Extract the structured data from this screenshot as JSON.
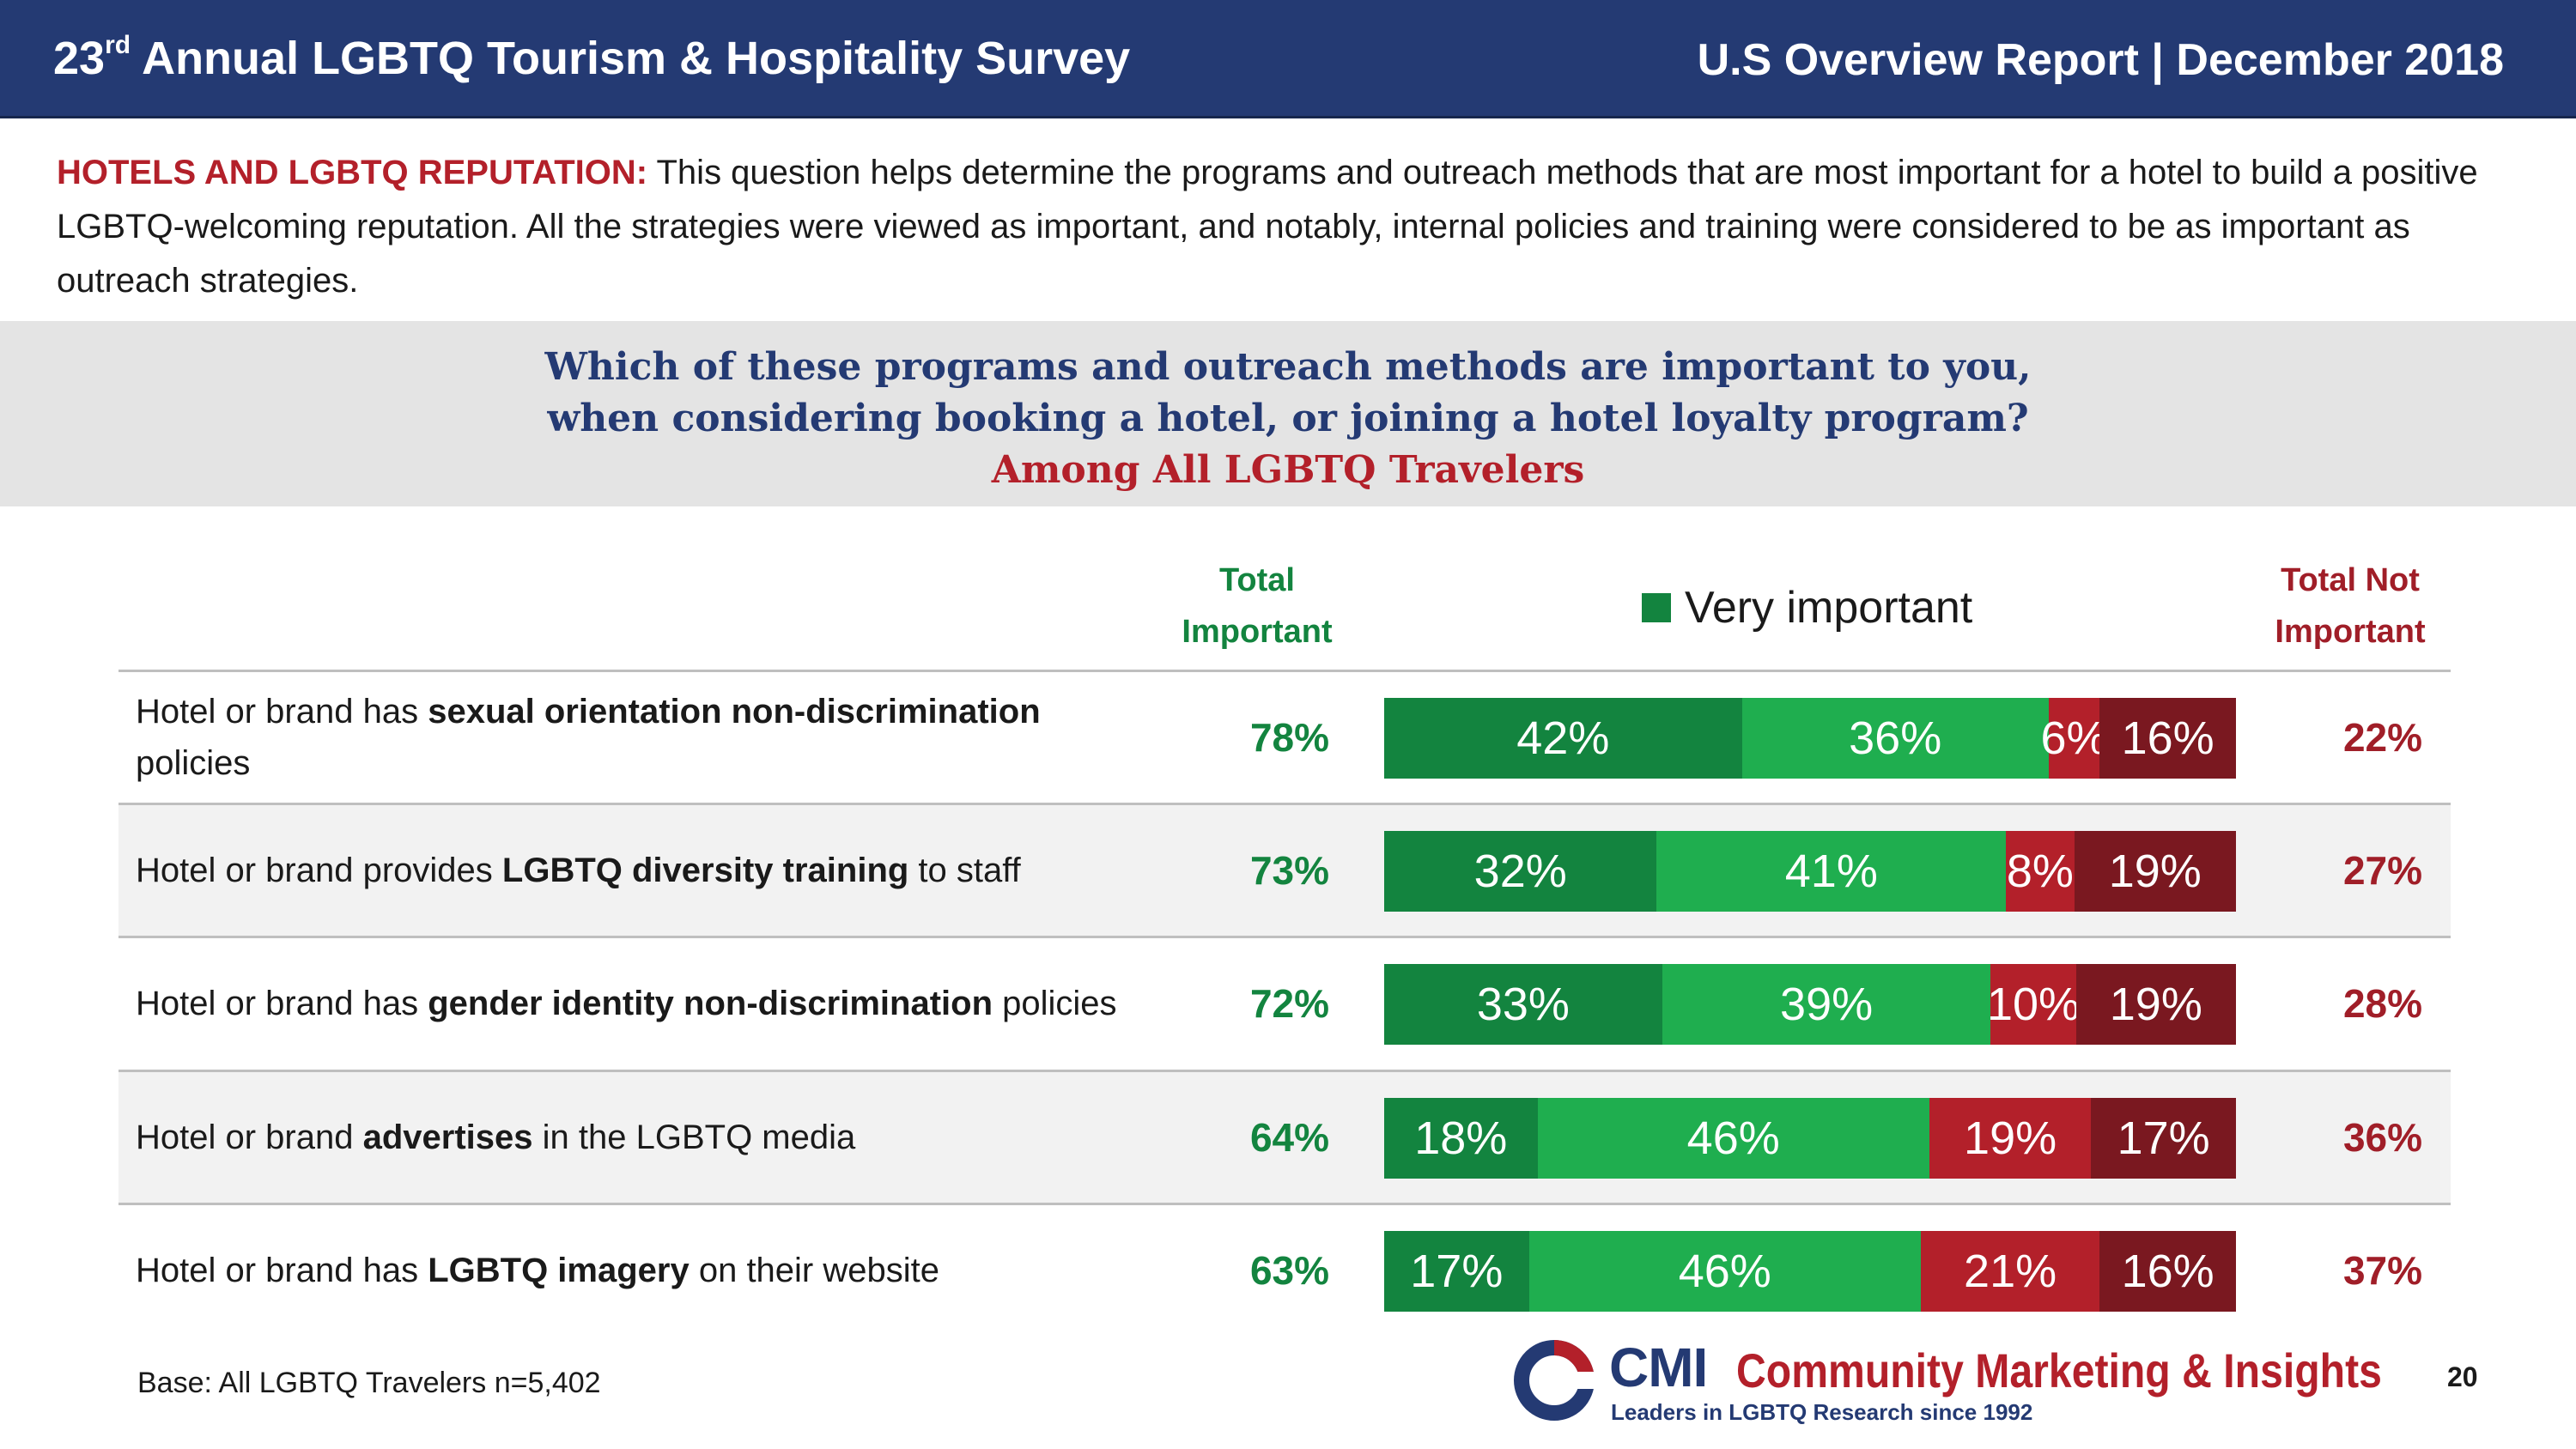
{
  "header": {
    "title_num": "23",
    "title_sup": "rd",
    "title_rest": " Annual LGBTQ Tourism & Hospitality Survey",
    "right": "U.S Overview Report | December 2018"
  },
  "intro": {
    "lead": "HOTELS AND LGBTQ REPUTATION:",
    "body": " This question helps determine the programs and outreach methods that are most important for a hotel to build a positive LGBTQ-welcoming reputation. All the strategies were viewed as important, and notably, internal policies and training were considered to be as important as outreach strategies."
  },
  "question": {
    "line1": "Which of these programs and outreach methods are important to you,",
    "line2": "when considering booking a hotel, or joining a hotel loyalty program?",
    "subtitle": "Among All LGBTQ Travelers"
  },
  "columns": {
    "total_important_1": "Total",
    "total_important_2": "Important",
    "total_not_1": "Total Not",
    "total_not_2": "Important"
  },
  "legend": {
    "very_important": "Very important"
  },
  "colors": {
    "very_important": "#13843f",
    "somewhat_important": "#1fae4f",
    "somewhat_not_important": "#b3202a",
    "not_important": "#7a1820",
    "header": "#243a73"
  },
  "chart_data": {
    "type": "bar",
    "orientation": "horizontal",
    "stacked": true,
    "title": "",
    "categories": [
      "Hotel or brand has sexual orientation non-discrimination policies",
      "Hotel or brand provides LGBTQ diversity training to staff",
      "Hotel or brand has gender identity non-discrimination policies",
      "Hotel or brand advertises in the LGBTQ media",
      "Hotel or brand has LGBTQ imagery on their website"
    ],
    "rows": [
      {
        "pre": "Hotel or brand has ",
        "bold": "sexual orientation non-discrimination",
        "post": " policies",
        "total_important": "78%",
        "total_not_important": "22%"
      },
      {
        "pre": "Hotel or brand provides ",
        "bold": "LGBTQ diversity training",
        "post": " to staff",
        "total_important": "73%",
        "total_not_important": "27%"
      },
      {
        "pre": "Hotel or brand has ",
        "bold": "gender identity non-discrimination",
        "post": " policies",
        "total_important": "72%",
        "total_not_important": "28%"
      },
      {
        "pre": "Hotel or brand ",
        "bold": "advertises",
        "post": " in the LGBTQ media",
        "total_important": "64%",
        "total_not_important": "36%"
      },
      {
        "pre": "Hotel or brand has ",
        "bold": "LGBTQ imagery",
        "post": " on their website",
        "total_important": "63%",
        "total_not_important": "37%"
      }
    ],
    "series": [
      {
        "key": "very_important",
        "name": "Very important",
        "values": [
          42,
          32,
          33,
          18,
          17
        ]
      },
      {
        "key": "somewhat_important",
        "values": [
          36,
          41,
          39,
          46,
          46
        ]
      },
      {
        "key": "somewhat_not_important",
        "values": [
          6,
          8,
          10,
          19,
          21
        ]
      },
      {
        "key": "not_important",
        "values": [
          16,
          19,
          19,
          17,
          16
        ]
      }
    ],
    "legend_position": "top",
    "xlim": [
      0,
      100
    ]
  },
  "footer": {
    "base": "Base: All LGBTQ Travelers n=5,402",
    "logo_cmi": "CMI",
    "logo_name": "Community Marketing & Insights",
    "logo_tagline": "Leaders in LGBTQ Research since 1992",
    "page_number": "20"
  }
}
